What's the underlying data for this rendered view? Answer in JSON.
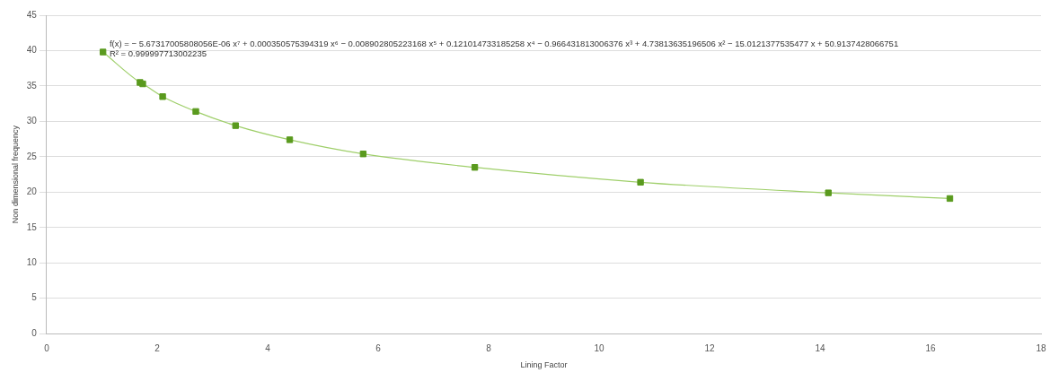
{
  "chart_data": {
    "type": "scatter",
    "xlabel": "Lining Factor",
    "ylabel": "Non dimensional frequency",
    "annotations": [
      "f(x) = − 5.67317005808056E-06 x⁷ + 0.000350575394319 x⁶ − 0.008902805223168 x⁵ + 0.121014733185258 x⁴ − 0.966431813006376 x³ + 4.73813635196506 x² − 15.0121377535477 x + 50.9137428066751",
      "R² = 0.999997713002235"
    ],
    "series": [
      {
        "type": "scatter",
        "color": "#5a9a1e",
        "marker": "square",
        "x": [
          1.02,
          1.69,
          1.74,
          2.1,
          2.7,
          3.42,
          4.4,
          5.73,
          7.75,
          10.75,
          14.15,
          16.35
        ],
        "values": [
          39.8,
          35.5,
          35.3,
          33.5,
          31.4,
          29.4,
          27.4,
          25.4,
          23.5,
          21.4,
          19.9,
          19.1
        ]
      },
      {
        "type": "line",
        "color": "#9fcf6a",
        "marker": "none",
        "x": [
          1.02,
          1.69,
          1.74,
          2.1,
          2.7,
          3.42,
          4.4,
          5.73,
          7.75,
          10.75,
          14.15,
          16.35
        ],
        "values": [
          39.8,
          35.5,
          35.3,
          33.5,
          31.4,
          29.4,
          27.4,
          25.4,
          23.5,
          21.4,
          19.9,
          19.1
        ]
      }
    ],
    "xlim": [
      0,
      18
    ],
    "xticks": [
      0,
      2,
      4,
      6,
      8,
      10,
      12,
      14,
      16,
      18
    ],
    "ylim": [
      0,
      45
    ],
    "yticks": [
      0,
      5,
      10,
      15,
      20,
      25,
      30,
      35,
      40,
      45
    ],
    "grid": "y",
    "legend": false
  }
}
